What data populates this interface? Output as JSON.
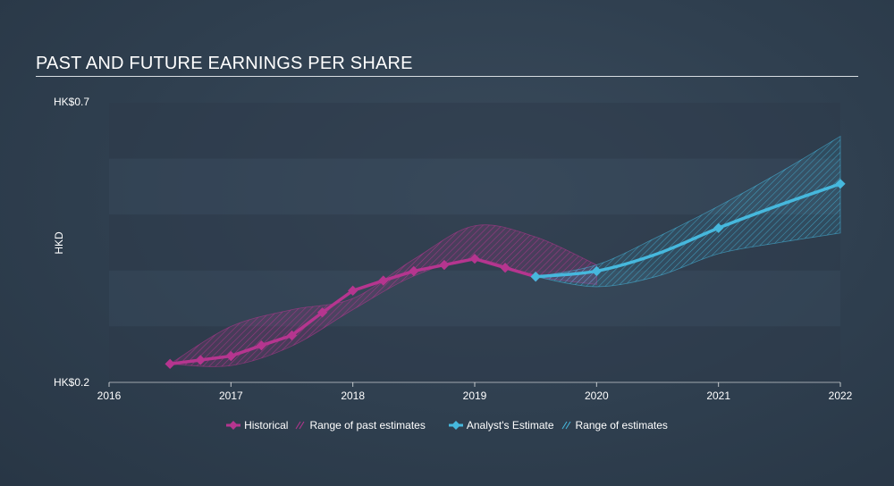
{
  "title": "PAST AND FUTURE EARNINGS PER SHARE",
  "colors": {
    "historical": "#b5358f",
    "estimate": "#46b8dd",
    "band_light": "#36475a",
    "band_dark": "#2d3b4b"
  },
  "legend": {
    "historical": "Historical",
    "past_range": "Range of past estimates",
    "estimate": "Analyst's Estimate",
    "future_range": "Range of estimates"
  },
  "chart_data": {
    "type": "line",
    "title": "PAST AND FUTURE EARNINGS PER SHARE",
    "ylabel": "HKD",
    "y_tick_labels": {
      "top": "HK$0.7",
      "bottom": "HK$0.2"
    },
    "ylim": [
      0.2,
      0.7
    ],
    "xlim": [
      2016,
      2022.0
    ],
    "x_ticks": [
      2016,
      2017,
      2018,
      2019,
      2020,
      2021,
      2022
    ],
    "grid": "horizontal bands",
    "legend_position": "bottom",
    "series": [
      {
        "name": "Historical",
        "x": [
          2016.5,
          2016.75,
          2017.0,
          2017.25,
          2017.5,
          2017.75,
          2018.0,
          2018.25,
          2018.5,
          2018.75,
          2019.0,
          2019.25,
          2019.5
        ],
        "y": [
          0.233,
          0.24,
          0.247,
          0.266,
          0.284,
          0.325,
          0.364,
          0.382,
          0.399,
          0.41,
          0.421,
          0.405,
          0.389
        ]
      },
      {
        "name": "Analyst's Estimate",
        "x": [
          2019.5,
          2020.0,
          2020.5,
          2021.0,
          2021.5,
          2022.0
        ],
        "y": [
          0.389,
          0.399,
          0.43,
          0.476,
          0.517,
          0.555
        ]
      }
    ],
    "ranges": [
      {
        "name": "Range of past estimates",
        "x": [
          2016.5,
          2017.0,
          2017.5,
          2018.0,
          2018.5,
          2019.0,
          2019.5,
          2020.0
        ],
        "low": [
          0.233,
          0.23,
          0.265,
          0.33,
          0.39,
          0.42,
          0.39,
          0.375
        ],
        "high": [
          0.233,
          0.3,
          0.33,
          0.35,
          0.42,
          0.48,
          0.46,
          0.41
        ]
      },
      {
        "name": "Range of estimates",
        "x": [
          2019.5,
          2020.0,
          2020.5,
          2021.0,
          2021.5,
          2022.0
        ],
        "low": [
          0.389,
          0.371,
          0.39,
          0.43,
          0.45,
          0.467
        ],
        "high": [
          0.389,
          0.41,
          0.46,
          0.515,
          0.575,
          0.64
        ]
      }
    ]
  }
}
